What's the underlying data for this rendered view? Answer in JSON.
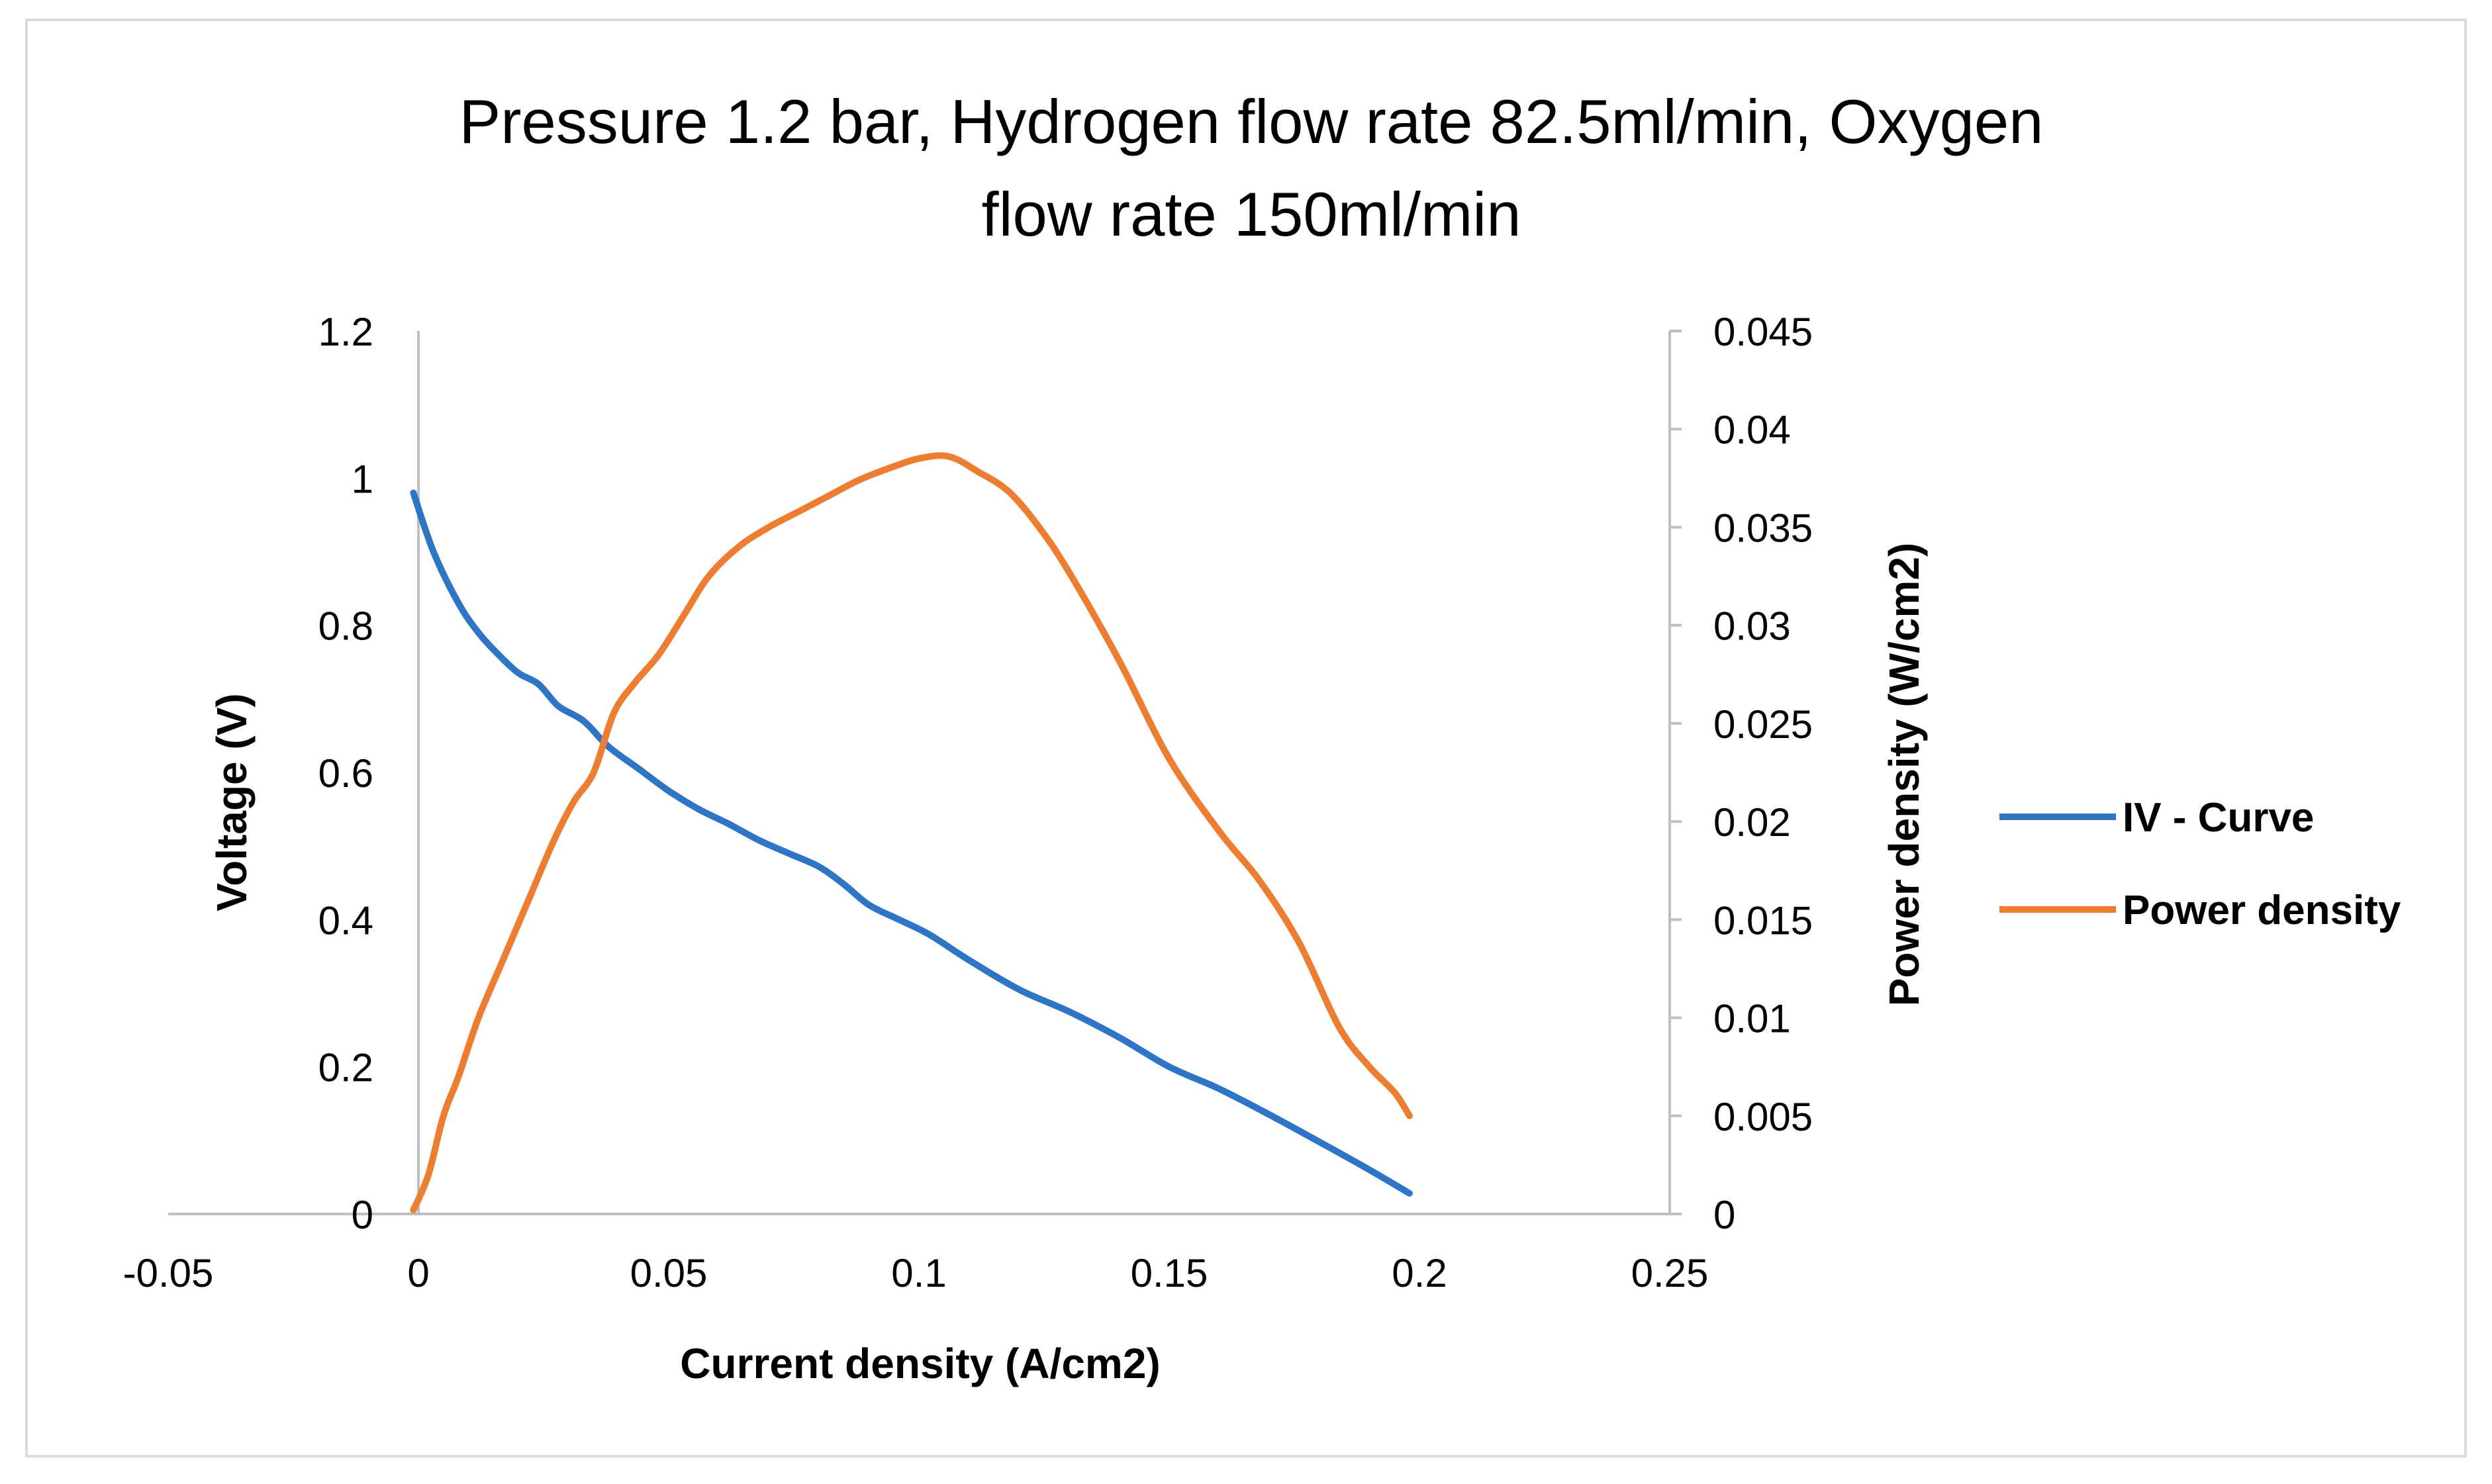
{
  "chart_data": {
    "type": "line",
    "title_lines": [
      "Pressure 1.2 bar, Hydrogen flow rate 82.5ml/min, Oxygen",
      "flow rate 150ml/min"
    ],
    "xlabel": "Current density (A/cm2)",
    "ylabel": "Voltage (V)",
    "y2label": "Power density (W/cm2)",
    "xlim": [
      -0.05,
      0.25
    ],
    "ylim": [
      0,
      1.2
    ],
    "y2lim": [
      0,
      0.045
    ],
    "x_ticks": [
      "-0.05",
      "0",
      "0.05",
      "0.1",
      "0.15",
      "0.2",
      "0.25"
    ],
    "y_ticks": [
      "0",
      "0.2",
      "0.4",
      "0.6",
      "0.8",
      "1",
      "1.2"
    ],
    "y2_ticks": [
      "0",
      "0.005",
      "0.01",
      "0.015",
      "0.02",
      "0.025",
      "0.03",
      "0.035",
      "0.04",
      "0.045"
    ],
    "grid": false,
    "legend_position": "right",
    "series": [
      {
        "name": "IV - Curve",
        "axis": "left",
        "color": "#2e75c6",
        "x": [
          -0.001,
          0.003,
          0.008,
          0.012,
          0.016,
          0.02,
          0.024,
          0.028,
          0.033,
          0.038,
          0.044,
          0.05,
          0.056,
          0.062,
          0.068,
          0.074,
          0.08,
          0.085,
          0.09,
          0.096,
          0.102,
          0.11,
          0.12,
          0.13,
          0.14,
          0.15,
          0.16,
          0.17,
          0.18,
          0.19,
          0.198
        ],
        "y": [
          0.98,
          0.9,
          0.83,
          0.79,
          0.76,
          0.735,
          0.72,
          0.69,
          0.67,
          0.635,
          0.605,
          0.575,
          0.55,
          0.53,
          0.508,
          0.49,
          0.472,
          0.448,
          0.42,
          0.4,
          0.38,
          0.345,
          0.305,
          0.275,
          0.24,
          0.2,
          0.17,
          0.135,
          0.098,
          0.06,
          0.028
        ]
      },
      {
        "name": "Power density",
        "axis": "right",
        "color": "#ed7d31",
        "x": [
          -0.001,
          0.002,
          0.005,
          0.008,
          0.012,
          0.017,
          0.022,
          0.027,
          0.031,
          0.035,
          0.039,
          0.043,
          0.048,
          0.053,
          0.058,
          0.064,
          0.07,
          0.076,
          0.082,
          0.088,
          0.094,
          0.1,
          0.106,
          0.112,
          0.118,
          0.124,
          0.13,
          0.14,
          0.15,
          0.16,
          0.168,
          0.176,
          0.184,
          0.19,
          0.195,
          0.198
        ],
        "y": [
          0.0002,
          0.002,
          0.005,
          0.007,
          0.01,
          0.013,
          0.016,
          0.019,
          0.021,
          0.0225,
          0.0255,
          0.027,
          0.0285,
          0.0305,
          0.0325,
          0.034,
          0.035,
          0.0358,
          0.0366,
          0.0374,
          0.038,
          0.0385,
          0.0386,
          0.0378,
          0.0368,
          0.035,
          0.0327,
          0.0282,
          0.0232,
          0.0195,
          0.017,
          0.0138,
          0.0095,
          0.0075,
          0.0062,
          0.005
        ]
      }
    ]
  }
}
